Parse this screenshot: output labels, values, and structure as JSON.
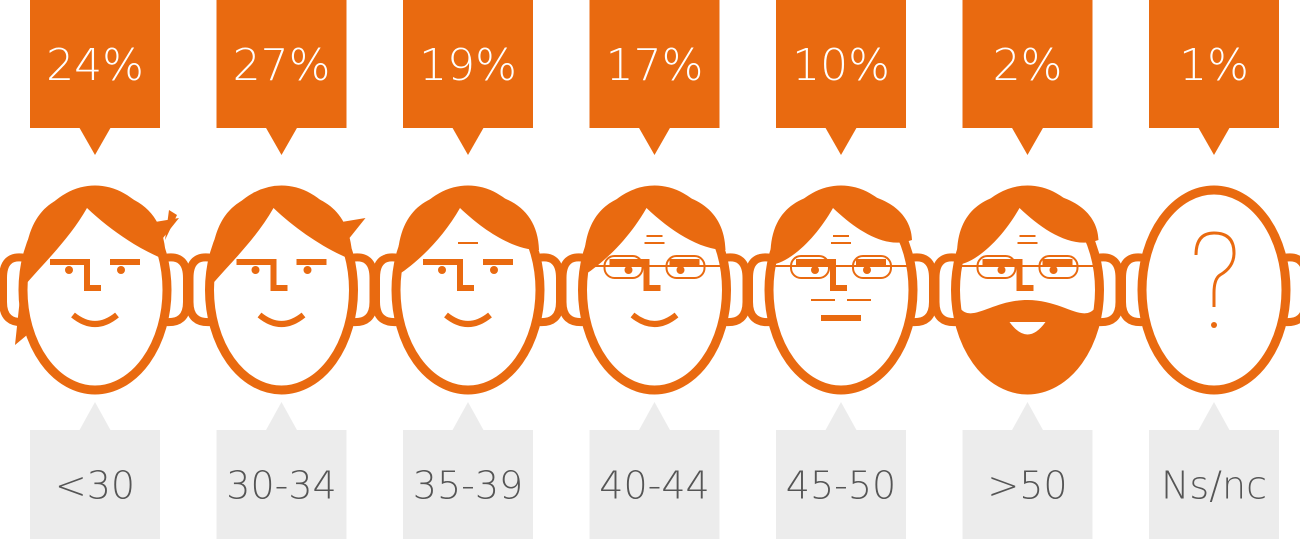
{
  "chart_data": {
    "type": "pictogram",
    "categories": [
      "<30",
      "30-34",
      "35-39",
      "40-44",
      "45-50",
      ">50",
      "Ns/nc"
    ],
    "values": [
      24,
      27,
      19,
      17,
      10,
      2,
      1
    ],
    "value_labels": [
      "24%",
      "27%",
      "19%",
      "17%",
      "10%",
      "2%",
      "1%"
    ],
    "color": "#e96a10"
  }
}
